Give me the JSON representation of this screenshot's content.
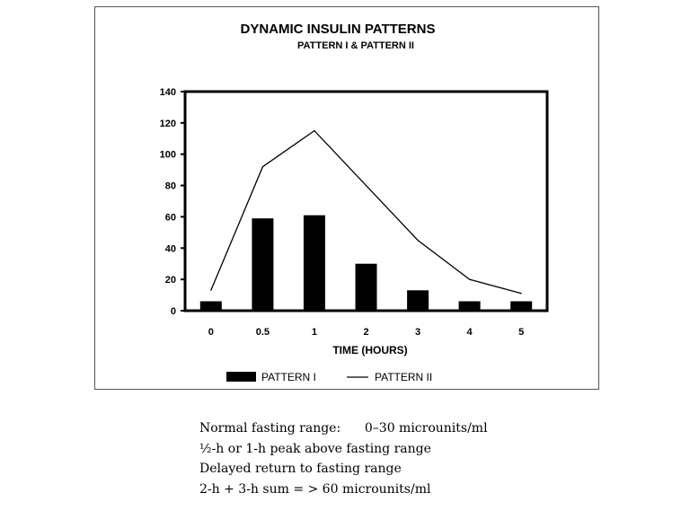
{
  "chart_data": {
    "type": "bar",
    "title": "DYNAMIC INSULIN PATTERNS",
    "subtitle": "PATTERN I & PATTERN II",
    "xlabel": "TIME (HOURS)",
    "ylabel": "",
    "categories": [
      "0",
      "0.5",
      "1",
      "2",
      "3",
      "4",
      "5"
    ],
    "ylim": [
      0,
      140
    ],
    "yticks": [
      0,
      20,
      40,
      60,
      80,
      100,
      120,
      140
    ],
    "grid": false,
    "legend_position": "bottom",
    "series": [
      {
        "name": "PATTERN I",
        "type": "bar",
        "color": "#000000",
        "values": [
          6,
          59,
          61,
          30,
          13,
          6,
          6
        ]
      },
      {
        "name": "PATTERN II",
        "type": "line",
        "color": "#000000",
        "values": [
          13,
          92,
          115,
          80,
          45,
          20,
          11
        ]
      }
    ]
  },
  "notes": [
    "Normal fasting range:      0–30 microunits/ml",
    "½-h or 1-h peak above fasting range",
    "Delayed return to fasting range",
    "2-h + 3-h sum = > 60 microunits/ml"
  ]
}
